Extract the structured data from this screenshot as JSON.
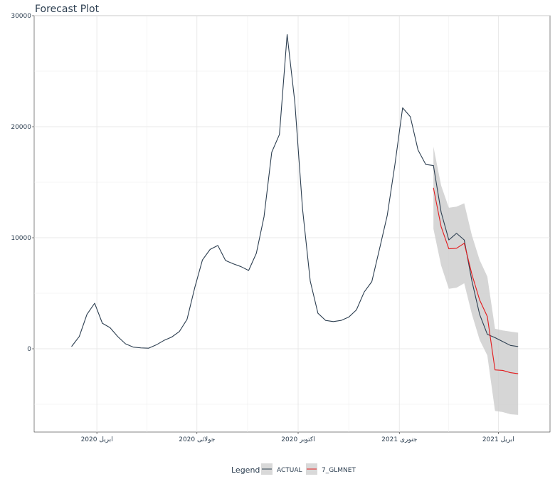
{
  "chart_data": {
    "type": "line",
    "title": "Forecast Plot",
    "xlabel": "",
    "ylabel": "",
    "ylim": [
      -7500,
      30000
    ],
    "y_ticks": [
      0,
      10000,
      20000,
      30000
    ],
    "x_ticks": [
      {
        "date": "2020-04-01",
        "label": "ابریل 2020"
      },
      {
        "date": "2020-07-01",
        "label": "جولائی 2020"
      },
      {
        "date": "2020-10-01",
        "label": "اکتوبر 2020"
      },
      {
        "date": "2021-01-01",
        "label": "جنوری 2021"
      },
      {
        "date": "2021-04-01",
        "label": "ابریل 2021"
      }
    ],
    "xlim": [
      "2020-02-04",
      "2021-05-18"
    ],
    "grid": true,
    "legend": {
      "title": "Legend",
      "position": "bottom"
    },
    "series": [
      {
        "name": "ACTUAL",
        "color": "#2c3e50",
        "points": [
          [
            "2020-03-09",
            200
          ],
          [
            "2020-03-16",
            1100
          ],
          [
            "2020-03-23",
            3100
          ],
          [
            "2020-03-30",
            4100
          ],
          [
            "2020-04-06",
            2300
          ],
          [
            "2020-04-13",
            1900
          ],
          [
            "2020-04-20",
            1100
          ],
          [
            "2020-04-27",
            450
          ],
          [
            "2020-05-04",
            150
          ],
          [
            "2020-05-11",
            80
          ],
          [
            "2020-05-18",
            50
          ],
          [
            "2020-05-25",
            350
          ],
          [
            "2020-06-01",
            750
          ],
          [
            "2020-06-08",
            1050
          ],
          [
            "2020-06-15",
            1550
          ],
          [
            "2020-06-22",
            2650
          ],
          [
            "2020-06-29",
            5500
          ],
          [
            "2020-07-06",
            8000
          ],
          [
            "2020-07-13",
            8950
          ],
          [
            "2020-07-20",
            9300
          ],
          [
            "2020-07-27",
            7950
          ],
          [
            "2020-08-03",
            7650
          ],
          [
            "2020-08-10",
            7400
          ],
          [
            "2020-08-17",
            7050
          ],
          [
            "2020-08-24",
            8600
          ],
          [
            "2020-08-31",
            11900
          ],
          [
            "2020-09-07",
            17700
          ],
          [
            "2020-09-14",
            19300
          ],
          [
            "2020-09-21",
            28300
          ],
          [
            "2020-09-28",
            22200
          ],
          [
            "2020-10-05",
            12600
          ],
          [
            "2020-10-12",
            6100
          ],
          [
            "2020-10-19",
            3200
          ],
          [
            "2020-10-26",
            2550
          ],
          [
            "2020-11-02",
            2450
          ],
          [
            "2020-11-09",
            2550
          ],
          [
            "2020-11-16",
            2850
          ],
          [
            "2020-11-23",
            3500
          ],
          [
            "2020-11-30",
            5100
          ],
          [
            "2020-12-07",
            6050
          ],
          [
            "2020-12-14",
            9000
          ],
          [
            "2020-12-21",
            12000
          ],
          [
            "2020-12-28",
            16600
          ],
          [
            "2021-01-04",
            21700
          ],
          [
            "2021-01-11",
            20900
          ],
          [
            "2021-01-18",
            17900
          ],
          [
            "2021-01-25",
            16600
          ],
          [
            "2021-02-01",
            16500
          ],
          [
            "2021-02-08",
            12300
          ],
          [
            "2021-02-15",
            9800
          ],
          [
            "2021-02-22",
            10400
          ],
          [
            "2021-03-01",
            9800
          ],
          [
            "2021-03-08",
            6100
          ],
          [
            "2021-03-15",
            3100
          ],
          [
            "2021-03-22",
            1300
          ],
          [
            "2021-03-29",
            1000
          ],
          [
            "2021-04-05",
            650
          ],
          [
            "2021-04-12",
            300
          ],
          [
            "2021-04-19",
            200
          ]
        ]
      },
      {
        "name": "7_GLMNET",
        "color": "#e31a1c",
        "points": [
          [
            "2021-02-01",
            14500
          ],
          [
            "2021-02-08",
            11000
          ],
          [
            "2021-02-15",
            9000
          ],
          [
            "2021-02-22",
            9050
          ],
          [
            "2021-03-01",
            9500
          ],
          [
            "2021-03-08",
            6700
          ],
          [
            "2021-03-15",
            4400
          ],
          [
            "2021-03-22",
            2900
          ],
          [
            "2021-03-29",
            -1900
          ],
          [
            "2021-04-05",
            -1950
          ],
          [
            "2021-04-12",
            -2150
          ],
          [
            "2021-04-19",
            -2250
          ]
        ],
        "conf_lo": [
          10800,
          7500,
          5400,
          5500,
          5900,
          3100,
          800,
          -600,
          -5600,
          -5700,
          -5900,
          -5950
        ],
        "conf_hi": [
          18200,
          14700,
          12700,
          12800,
          13100,
          10200,
          8000,
          6500,
          1800,
          1650,
          1550,
          1450
        ]
      }
    ]
  }
}
